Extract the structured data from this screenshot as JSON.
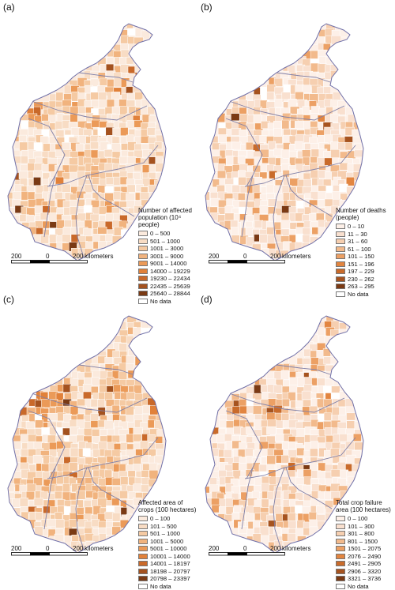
{
  "colors": {
    "coast": "#7070a8",
    "border": "#8080a8",
    "nodata": "#ffffff"
  },
  "panels": [
    {
      "letter": "(a)",
      "legend_title": "Number of affected population (10⁴ people)",
      "classes": [
        {
          "label": "0 – 500",
          "color": "#fbeadd"
        },
        {
          "label": "501 – 1000",
          "color": "#f8dcc4"
        },
        {
          "label": "1001 – 3000",
          "color": "#f5caa3"
        },
        {
          "label": "3001 – 9000",
          "color": "#f1b37e"
        },
        {
          "label": "9001 – 14000",
          "color": "#eb9a58"
        },
        {
          "label": "14000 – 19229",
          "color": "#e1813a"
        },
        {
          "label": "19230 – 22434",
          "color": "#c9692a"
        },
        {
          "label": "22435 – 25639",
          "color": "#a4521f"
        },
        {
          "label": "25640 – 28844",
          "color": "#7a3a14"
        },
        {
          "label": "No data",
          "color": "#ffffff"
        }
      ]
    },
    {
      "letter": "(b)",
      "legend_title": "Number of deaths (people)",
      "classes": [
        {
          "label": "0 – 10",
          "color": "#fdf0e8"
        },
        {
          "label": "11 – 30",
          "color": "#f9e0cf"
        },
        {
          "label": "31 – 60",
          "color": "#f6cfb0"
        },
        {
          "label": "61 – 100",
          "color": "#f2ba8c"
        },
        {
          "label": "101 – 150",
          "color": "#eca064"
        },
        {
          "label": "151 – 196",
          "color": "#e28540"
        },
        {
          "label": "197 – 229",
          "color": "#c96b2b"
        },
        {
          "label": "230 – 262",
          "color": "#a6531f"
        },
        {
          "label": "263 – 295",
          "color": "#7b3a14"
        },
        {
          "label": "No data",
          "color": "#ffffff"
        }
      ]
    },
    {
      "letter": "(c)",
      "legend_title": "Affected area of crops (100 hectares)",
      "classes": [
        {
          "label": "0 – 100",
          "color": "#fbeadd"
        },
        {
          "label": "101 – 500",
          "color": "#f8dcc4"
        },
        {
          "label": "501 – 1000",
          "color": "#f5caa3"
        },
        {
          "label": "1001 – 5000",
          "color": "#f1b37e"
        },
        {
          "label": "5001 – 10000",
          "color": "#eb9a58"
        },
        {
          "label": "10001 – 14000",
          "color": "#e1813a"
        },
        {
          "label": "14001 – 18197",
          "color": "#c9692a"
        },
        {
          "label": "18198 – 20797",
          "color": "#a4521f"
        },
        {
          "label": "20798 – 23397",
          "color": "#7a3a14"
        },
        {
          "label": "No data",
          "color": "#ffffff"
        }
      ]
    },
    {
      "letter": "(d)",
      "legend_title": "Total crop failure area (100 hectares)",
      "classes": [
        {
          "label": "0 – 100",
          "color": "#fdf0e8"
        },
        {
          "label": "101 – 300",
          "color": "#f9e0cf"
        },
        {
          "label": "301 – 800",
          "color": "#f6cfb0"
        },
        {
          "label": "801 – 1500",
          "color": "#f2ba8c"
        },
        {
          "label": "1501 – 2075",
          "color": "#eca064"
        },
        {
          "label": "2076 – 2490",
          "color": "#e28540"
        },
        {
          "label": "2491 – 2905",
          "color": "#c96b2b"
        },
        {
          "label": "2906 – 3320",
          "color": "#a6531f"
        },
        {
          "label": "3321 – 3736",
          "color": "#7b3a14"
        },
        {
          "label": "No data",
          "color": "#ffffff"
        }
      ]
    }
  ],
  "scale": {
    "left": "200",
    "mid": "0",
    "right": "200",
    "unit": "kilometers"
  }
}
